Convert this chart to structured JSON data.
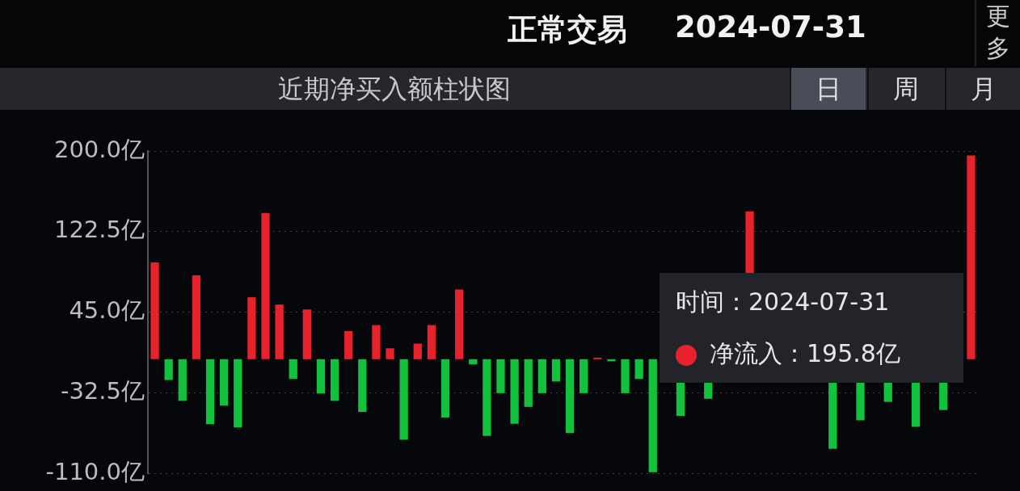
{
  "chart_data": {
    "type": "bar",
    "title": "近期净买入额柱状图",
    "categories": [
      null,
      null,
      null,
      null,
      null,
      null,
      null,
      null,
      null,
      null,
      null,
      null,
      null,
      null,
      null,
      null,
      null,
      null,
      null,
      null,
      null,
      null,
      null,
      null,
      null,
      null,
      null,
      null,
      null,
      null,
      null,
      null,
      null,
      null,
      null,
      null,
      null,
      null,
      null,
      null,
      null,
      null,
      null,
      null,
      null,
      null,
      null,
      null,
      null,
      null,
      null,
      null,
      null,
      null,
      null,
      null,
      null,
      null,
      null,
      null
    ],
    "values": [
      93,
      -20,
      -40,
      80.6,
      -62.5,
      -44.6,
      -65.5,
      59.5,
      140.4,
      52.5,
      -19,
      47.8,
      -33,
      -40,
      27,
      -50.5,
      32.8,
      10.5,
      -77.4,
      15,
      32.8,
      -56,
      67,
      -5,
      -73.7,
      -32.6,
      -62,
      -45.8,
      -32.6,
      -21.4,
      -71,
      -32.6,
      1.5,
      -2,
      -32.6,
      -19,
      -108.5,
      null,
      -54.5,
      null,
      -38,
      null,
      null,
      142,
      null,
      null,
      null,
      null,
      null,
      -86,
      null,
      -58.8,
      null,
      -41,
      null,
      -65,
      null,
      -48.8,
      null,
      195.8
    ],
    "colors": [
      "#e8222c",
      "#12c23c",
      "#12c23c",
      "#e8222c",
      "#12c23c",
      "#12c23c",
      "#12c23c",
      "#e8222c",
      "#e8222c",
      "#e8222c",
      "#12c23c",
      "#e8222c",
      "#12c23c",
      "#12c23c",
      "#e8222c",
      "#12c23c",
      "#e8222c",
      "#e8222c",
      "#12c23c",
      "#e8222c",
      "#e8222c",
      "#12c23c",
      "#e8222c",
      "#12c23c",
      "#12c23c",
      "#12c23c",
      "#12c23c",
      "#12c23c",
      "#12c23c",
      "#12c23c",
      "#12c23c",
      "#12c23c",
      "#e8222c",
      "#12c23c",
      "#12c23c",
      "#12c23c",
      "#12c23c",
      "#12c23c",
      "#12c23c",
      "#12c23c",
      "#12c23c",
      "#12c23c",
      "#12c23c",
      "#e8222c",
      "#12c23c",
      "#12c23c",
      "#12c23c",
      "#12c23c",
      "#12c23c",
      "#12c23c",
      "#12c23c",
      "#12c23c",
      "#12c23c",
      "#12c23c",
      "#12c23c",
      "#12c23c",
      "#12c23c",
      "#12c23c",
      "#12c23c",
      "#e8222c"
    ],
    "ylim": [
      -110,
      200
    ],
    "yticks": [
      {
        "value": 200,
        "label": "200.0亿"
      },
      {
        "value": 122.5,
        "label": "122.5亿"
      },
      {
        "value": 45,
        "label": "45.0亿"
      },
      {
        "value": -32.5,
        "label": "-32.5亿"
      },
      {
        "value": -110,
        "label": "-110.0亿"
      }
    ],
    "grid": "y",
    "legend": false,
    "tick_labels": "y",
    "annotations": [
      "正常交易",
      "2024-07-31",
      "更多",
      "日",
      "周",
      "月",
      "时间：2024-07-31",
      "净流入：195.8亿"
    ]
  }
}
